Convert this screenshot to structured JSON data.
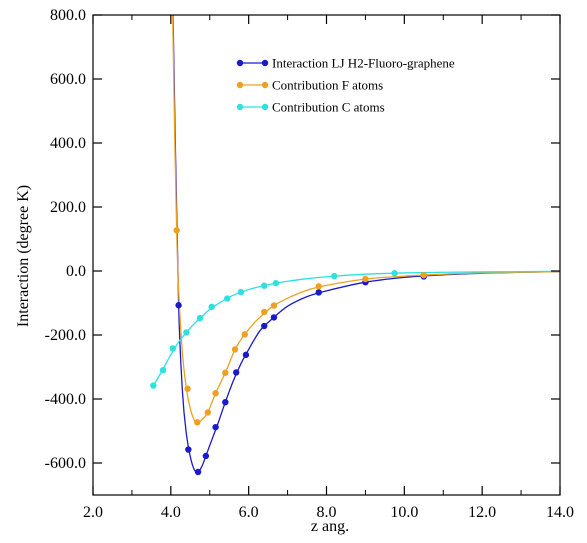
{
  "chart_data": {
    "type": "line",
    "title": "",
    "xlabel": "z ang.",
    "ylabel": "Interaction (degree K)",
    "xlim": [
      2.0,
      14.0
    ],
    "ylim": [
      -700,
      800
    ],
    "x_ticks": [
      2.0,
      4.0,
      6.0,
      8.0,
      10.0,
      12.0,
      14.0
    ],
    "x_tick_labels": [
      "2.0",
      "4.0",
      "6.0",
      "8.0",
      "10.0",
      "12.0",
      "14.0"
    ],
    "y_ticks": [
      800,
      600,
      400,
      200,
      0,
      -200,
      -400,
      -600
    ],
    "y_tick_labels": [
      "800.0",
      "600.0",
      "400.0",
      "200.0",
      "0.0",
      "-200.0",
      "-400.0",
      "-600.0"
    ],
    "grid": false,
    "legend_position": "top-right",
    "series": [
      {
        "name": "Interaction  LJ H2-Fluoro-graphene",
        "color": "#1a1acc",
        "points_x": [
          4.2,
          4.45,
          4.7,
          4.9,
          5.15,
          5.4,
          5.68,
          5.93,
          6.4,
          6.65,
          7.8,
          9.0,
          10.5
        ],
        "points_y": [
          -107,
          -558,
          -628,
          -578,
          -488,
          -410,
          -317,
          -262,
          -172,
          -145,
          -67,
          -35,
          -17
        ],
        "curve_x": [
          4.0,
          4.1,
          4.2,
          4.3,
          4.4,
          4.5,
          4.6,
          4.7,
          4.8,
          4.9,
          5.0,
          5.2,
          5.4,
          5.6,
          5.8,
          6.0,
          6.3,
          6.6,
          7.0,
          7.5,
          8.0,
          9.0,
          10.0,
          11.0,
          12.0,
          13.0,
          14.0
        ],
        "curve_y": [
          1200,
          500,
          -107,
          -380,
          -510,
          -580,
          -620,
          -628,
          -610,
          -578,
          -545,
          -480,
          -410,
          -345,
          -290,
          -245,
          -185,
          -150,
          -110,
          -80,
          -62,
          -35,
          -20,
          -12,
          -7,
          -4,
          -2
        ]
      },
      {
        "name": "Contribution  F atoms",
        "color": "#f0a020",
        "points_x": [
          4.15,
          4.43,
          4.68,
          4.95,
          5.15,
          5.4,
          5.65,
          5.9,
          6.4,
          6.65,
          7.8,
          9.0,
          10.5
        ],
        "points_y": [
          127,
          -368,
          -473,
          -442,
          -382,
          -318,
          -245,
          -198,
          -128,
          -108,
          -48,
          -25,
          -13
        ],
        "curve_x": [
          4.0,
          4.05,
          4.1,
          4.15,
          4.2,
          4.3,
          4.4,
          4.5,
          4.6,
          4.68,
          4.8,
          4.95,
          5.15,
          5.4,
          5.65,
          5.9,
          6.2,
          6.6,
          7.0,
          7.5,
          8.0,
          9.0,
          10.0,
          11.0,
          12.0,
          13.0,
          14.0
        ],
        "curve_y": [
          1200,
          780,
          420,
          127,
          -60,
          -260,
          -368,
          -430,
          -465,
          -473,
          -465,
          -442,
          -382,
          -318,
          -245,
          -198,
          -155,
          -112,
          -85,
          -60,
          -45,
          -25,
          -16,
          -10,
          -6,
          -4,
          -2
        ]
      },
      {
        "name": "Contribution  C atoms",
        "color": "#2ee0e0",
        "points_x": [
          3.55,
          3.8,
          4.05,
          4.4,
          4.75,
          5.05,
          5.45,
          5.8,
          6.4,
          6.7,
          8.2,
          9.75
        ],
        "points_y": [
          -358,
          -310,
          -242,
          -192,
          -147,
          -112,
          -86,
          -66,
          -46,
          -38,
          -16,
          -7
        ],
        "curve_x": [
          3.55,
          3.7,
          3.85,
          4.0,
          4.2,
          4.4,
          4.6,
          4.8,
          5.0,
          5.3,
          5.6,
          6.0,
          6.5,
          7.0,
          7.5,
          8.0,
          9.0,
          10.0,
          11.0,
          12.0,
          13.0,
          14.0
        ],
        "curve_y": [
          -358,
          -328,
          -295,
          -262,
          -222,
          -192,
          -165,
          -142,
          -120,
          -96,
          -76,
          -58,
          -43,
          -32,
          -24,
          -18,
          -10,
          -6,
          -4,
          -3,
          -2,
          -1
        ]
      }
    ]
  }
}
